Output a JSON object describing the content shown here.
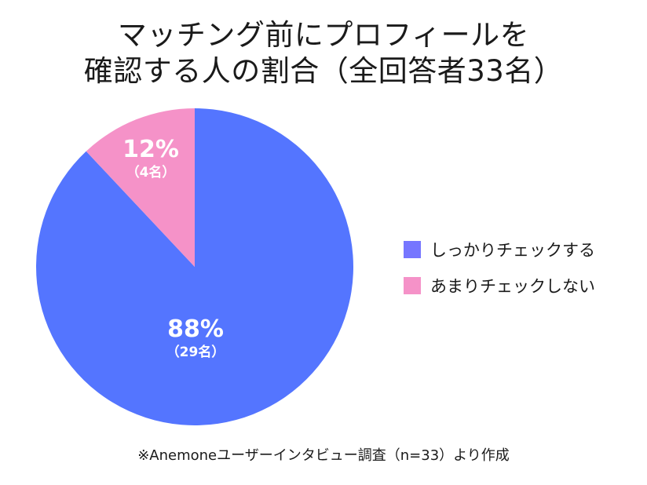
{
  "title": {
    "line1": "マッチング前にプロフィールを",
    "line2": "確認する人の割合（全回答者33名）"
  },
  "legend": {
    "items": [
      {
        "label": "しっかりチェックする",
        "color": "#7676ff"
      },
      {
        "label": "あまりチェックしない",
        "color": "#f592c8"
      }
    ]
  },
  "slices": [
    {
      "name": "しっかりチェックする",
      "pct_label": "88%",
      "count_label": "（29名）",
      "value": 88,
      "count": 29,
      "color": "#5475ff"
    },
    {
      "name": "あまりチェックしない",
      "pct_label": "12%",
      "count_label": "（4名）",
      "value": 12,
      "count": 4,
      "color": "#f592c8"
    }
  ],
  "source_note": "※Anemoneユーザーインタビュー調査（n=33）より作成",
  "chart_data": {
    "type": "pie",
    "title": "マッチング前にプロフィールを確認する人の割合（全回答者33名）",
    "categories": [
      "しっかりチェックする",
      "あまりチェックしない"
    ],
    "values": [
      88,
      12
    ],
    "counts": [
      29,
      4
    ],
    "total": 33,
    "unit": "%",
    "start_angle": "12 o'clock, clockwise",
    "colors": [
      "#5475ff",
      "#f592c8"
    ],
    "legend_position": "right",
    "annotations": [
      "88%（29名）",
      "12%（4名）"
    ],
    "note": "※Anemoneユーザーインタビュー調査（n=33）より作成"
  }
}
